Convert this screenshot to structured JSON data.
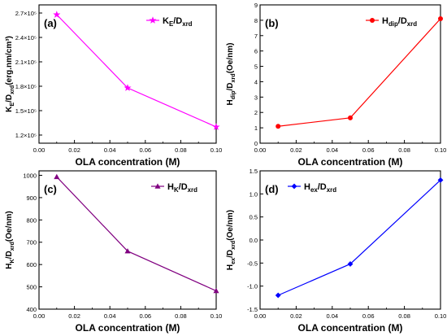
{
  "chart_data": [
    {
      "type": "line",
      "panel_label": "(a)",
      "xlabel": "OLA concentration (M)",
      "ylabel": "K_E/D_xrd(erg.nm/cm³)",
      "xlim": [
        0.0,
        0.1
      ],
      "ylim": [
        110000,
        280000
      ],
      "xticks": [
        0.0,
        0.02,
        0.04,
        0.06,
        0.08,
        0.1
      ],
      "xtick_labels": [
        "0.00",
        "0.02",
        "0.04",
        "0.06",
        "0.08",
        "0.10"
      ],
      "yticks": [
        120000,
        150000,
        180000,
        210000,
        240000,
        270000
      ],
      "ytick_labels": [
        "1.2×10⁵",
        "1.5×10⁵",
        "1.8×10⁵",
        "2.1×10⁵",
        "2.4×10⁵",
        "2.7×10⁵"
      ],
      "legend_position": "top-right",
      "series": [
        {
          "name": "K_E/D_xrd",
          "color": "#ff00ff",
          "marker": "star",
          "x": [
            0.01,
            0.05,
            0.1
          ],
          "y": [
            268000,
            178000,
            130000
          ]
        }
      ]
    },
    {
      "type": "line",
      "panel_label": "(b)",
      "xlabel": "OLA concentration (M)",
      "ylabel": "H_dip/D_xrd(Oe/nm)",
      "xlim": [
        0.0,
        0.1
      ],
      "ylim": [
        0,
        9
      ],
      "xticks": [
        0.0,
        0.02,
        0.04,
        0.06,
        0.08,
        0.1
      ],
      "xtick_labels": [
        "0.00",
        "0.02",
        "0.04",
        "0.06",
        "0.08",
        "0.10"
      ],
      "yticks": [
        0,
        1,
        2,
        3,
        4,
        5,
        6,
        7,
        8,
        9
      ],
      "ytick_labels": [
        "0",
        "1",
        "2",
        "3",
        "4",
        "5",
        "6",
        "7",
        "8",
        "9"
      ],
      "legend_position": "top-right",
      "series": [
        {
          "name": "H_dip/D_xrd",
          "color": "#ff0000",
          "marker": "circle",
          "x": [
            0.01,
            0.05,
            0.1
          ],
          "y": [
            1.1,
            1.65,
            8.1
          ]
        }
      ]
    },
    {
      "type": "line",
      "panel_label": "(c)",
      "xlabel": "OLA concentration (M)",
      "ylabel": "H_K/D_xrd(Oe/nm)",
      "xlim": [
        0.0,
        0.1
      ],
      "ylim": [
        400,
        1020
      ],
      "xticks": [
        0.0,
        0.02,
        0.04,
        0.06,
        0.08,
        0.1
      ],
      "xtick_labels": [
        "0.00",
        "0.02",
        "0.04",
        "0.06",
        "0.08",
        "0.10"
      ],
      "yticks": [
        400,
        500,
        600,
        700,
        800,
        900,
        1000
      ],
      "ytick_labels": [
        "400",
        "500",
        "600",
        "700",
        "800",
        "900",
        "1000"
      ],
      "legend_position": "top-right",
      "series": [
        {
          "name": "H_K/D_xrd",
          "color": "#800080",
          "marker": "triangle",
          "x": [
            0.01,
            0.05,
            0.1
          ],
          "y": [
            993,
            660,
            482
          ]
        }
      ]
    },
    {
      "type": "line",
      "panel_label": "(d)",
      "xlabel": "OLA concentration (M)",
      "ylabel": "H_ex/D_xrd(Oe/nm)",
      "xlim": [
        0.0,
        0.1
      ],
      "ylim": [
        -1.5,
        1.5
      ],
      "xticks": [
        0.0,
        0.02,
        0.04,
        0.06,
        0.08,
        0.1
      ],
      "xtick_labels": [
        "0.00",
        "0.02",
        "0.04",
        "0.06",
        "0.08",
        "0.10"
      ],
      "yticks": [
        -1.5,
        -1.0,
        -0.5,
        0.0,
        0.5,
        1.0,
        1.5
      ],
      "ytick_labels": [
        "-1.5",
        "-1.0",
        "-0.5",
        "0.0",
        "0.5",
        "1.0",
        "1.5"
      ],
      "legend_position": "top-left",
      "series": [
        {
          "name": "H_ex/D_xrd",
          "color": "#0000ff",
          "marker": "diamond",
          "x": [
            0.01,
            0.05,
            0.1
          ],
          "y": [
            -1.2,
            -0.52,
            1.3
          ]
        }
      ]
    }
  ]
}
